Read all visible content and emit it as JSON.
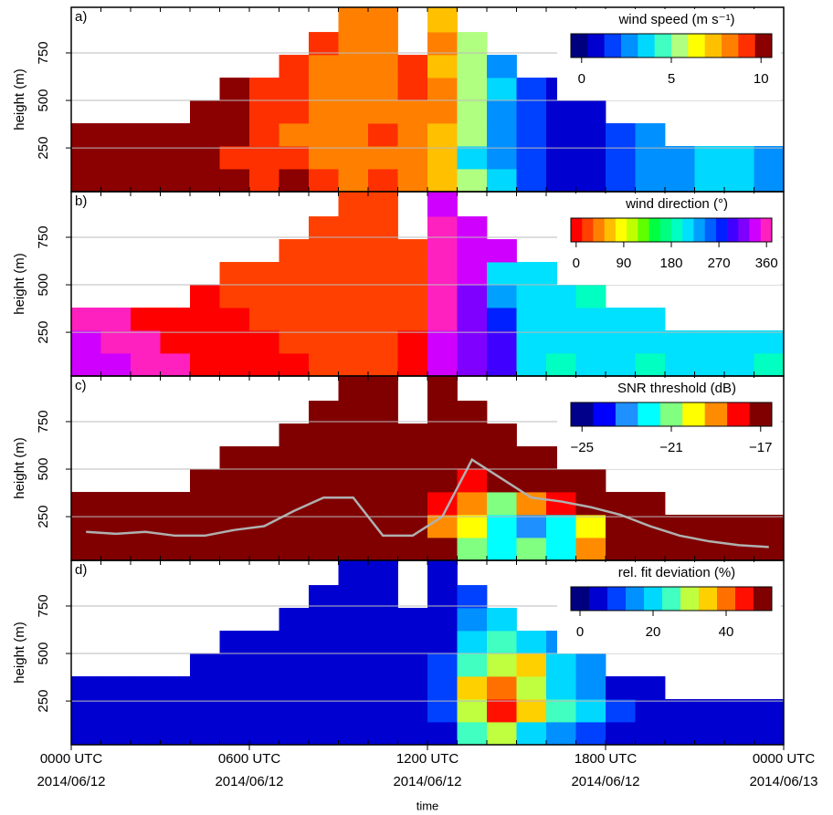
{
  "chart_data": [
    {
      "type": "heatmap",
      "panel_label": "a)",
      "ylabel": "height (m)",
      "colorbar_title": "wind speed (m s⁻¹)",
      "xlim": [
        0,
        24
      ],
      "ylim": [
        20,
        990
      ],
      "yticks": [
        250,
        500,
        750
      ],
      "grid": true,
      "legend": "top-right",
      "xbins": [
        0,
        1,
        2,
        3,
        4,
        5,
        6,
        7,
        8,
        9,
        10,
        11,
        12,
        13,
        14,
        15,
        16,
        17,
        18,
        19,
        20,
        21,
        22,
        23,
        24
      ],
      "ybins": [
        20,
        140,
        260,
        380,
        500,
        620,
        740,
        860,
        990
      ],
      "zlim": [
        -0.6,
        10.6
      ],
      "zticks": [
        0,
        5,
        10
      ],
      "colors": [
        "#00007f",
        "#0000d0",
        "#0040ff",
        "#0090ff",
        "#00d8ff",
        "#40ffc0",
        "#b0ff80",
        "#ffff00",
        "#ffc000",
        "#ff8000",
        "#ff3000",
        "#8b0000"
      ],
      "z": [
        [
          10,
          11,
          10,
          11,
          10,
          10,
          9,
          10,
          9,
          8,
          9,
          8,
          7,
          5,
          4,
          2,
          1,
          1,
          2,
          3,
          3,
          4,
          4,
          3
        ],
        [
          10,
          10,
          11,
          10,
          10,
          9,
          9,
          9,
          8,
          8,
          8,
          8,
          7,
          4,
          3,
          2,
          1,
          1,
          2,
          3,
          3,
          4,
          4,
          3
        ],
        [
          10,
          10,
          10,
          11,
          10,
          10,
          9,
          8,
          8,
          8,
          9,
          8,
          7,
          5,
          3,
          2,
          1,
          1,
          2,
          3,
          null,
          null,
          null,
          null
        ],
        [
          null,
          null,
          null,
          null,
          10,
          10,
          9,
          9,
          8,
          8,
          8,
          8,
          8,
          5,
          3,
          2,
          1,
          1,
          null,
          null,
          null,
          null,
          null,
          null
        ],
        [
          null,
          null,
          null,
          null,
          null,
          10,
          9,
          9,
          8,
          8,
          8,
          9,
          8,
          5,
          4,
          2,
          1,
          null,
          null,
          null,
          null,
          null,
          null,
          null
        ],
        [
          null,
          null,
          null,
          null,
          null,
          null,
          null,
          9,
          8,
          8,
          8,
          9,
          7,
          5,
          3,
          null,
          null,
          null,
          null,
          null,
          null,
          null,
          null,
          null
        ],
        [
          null,
          null,
          null,
          null,
          null,
          null,
          null,
          null,
          9,
          8,
          8,
          null,
          8,
          5,
          null,
          null,
          null,
          null,
          null,
          null,
          null,
          null,
          null,
          null
        ],
        [
          null,
          null,
          null,
          null,
          null,
          null,
          null,
          null,
          null,
          8,
          8,
          null,
          7,
          null,
          null,
          null,
          null,
          null,
          null,
          null,
          null,
          null,
          null,
          null
        ]
      ]
    },
    {
      "type": "heatmap",
      "panel_label": "b)",
      "ylabel": "height (m)",
      "colorbar_title": "wind direction (°)",
      "xlim": [
        0,
        24
      ],
      "ylim": [
        20,
        990
      ],
      "yticks": [
        250,
        500,
        750
      ],
      "grid": true,
      "legend": "top-right",
      "xbins": [
        0,
        1,
        2,
        3,
        4,
        5,
        6,
        7,
        8,
        9,
        10,
        11,
        12,
        13,
        14,
        15,
        16,
        17,
        18,
        19,
        20,
        21,
        22,
        23,
        24
      ],
      "ybins": [
        20,
        140,
        260,
        380,
        500,
        620,
        740,
        860,
        990
      ],
      "zlim": [
        -10,
        370
      ],
      "zticks": [
        0,
        90,
        180,
        270,
        360
      ],
      "colors": [
        "#ff0000",
        "#ff4000",
        "#ff8000",
        "#ffbf00",
        "#ffff00",
        "#bfff00",
        "#60ff00",
        "#00ff40",
        "#00ff80",
        "#00ffc0",
        "#00e0ff",
        "#00a0ff",
        "#0060ff",
        "#0020ff",
        "#4000ff",
        "#8000ff",
        "#d000ff",
        "#ff20c0"
      ],
      "z": [
        [
          340,
          345,
          350,
          355,
          5,
          5,
          10,
          10,
          15,
          20,
          15,
          10,
          340,
          320,
          300,
          210,
          200,
          205,
          205,
          200,
          205,
          210,
          205,
          200
        ],
        [
          345,
          350,
          355,
          5,
          5,
          10,
          10,
          15,
          20,
          25,
          20,
          10,
          345,
          320,
          290,
          210,
          205,
          205,
          205,
          205,
          205,
          210,
          205,
          205
        ],
        [
          350,
          355,
          5,
          5,
          10,
          10,
          15,
          15,
          20,
          25,
          25,
          15,
          350,
          325,
          280,
          215,
          205,
          205,
          205,
          205,
          null,
          null,
          null,
          null
        ],
        [
          null,
          null,
          null,
          null,
          10,
          15,
          15,
          20,
          25,
          25,
          25,
          20,
          355,
          325,
          230,
          210,
          205,
          200,
          null,
          null,
          null,
          null,
          null,
          null
        ],
        [
          null,
          null,
          null,
          null,
          null,
          15,
          20,
          25,
          25,
          25,
          25,
          20,
          355,
          330,
          220,
          210,
          205,
          null,
          null,
          null,
          null,
          null,
          null,
          null
        ],
        [
          null,
          null,
          null,
          null,
          null,
          null,
          null,
          25,
          25,
          25,
          25,
          15,
          350,
          330,
          330,
          null,
          null,
          null,
          null,
          null,
          null,
          null,
          null,
          null
        ],
        [
          null,
          null,
          null,
          null,
          null,
          null,
          null,
          null,
          25,
          25,
          25,
          null,
          350,
          340,
          null,
          null,
          null,
          null,
          null,
          null,
          null,
          null,
          null,
          null
        ],
        [
          null,
          null,
          null,
          null,
          null,
          null,
          null,
          null,
          null,
          25,
          25,
          null,
          340,
          null,
          null,
          null,
          null,
          null,
          null,
          null,
          null,
          null,
          null,
          null
        ]
      ]
    },
    {
      "type": "heatmap",
      "panel_label": "c)",
      "ylabel": "height (m)",
      "colorbar_title": "SNR threshold (dB)",
      "xlim": [
        0,
        24
      ],
      "ylim": [
        20,
        990
      ],
      "yticks": [
        250,
        500,
        750
      ],
      "grid": true,
      "legend": "top-right",
      "xbins": [
        0,
        1,
        2,
        3,
        4,
        5,
        6,
        7,
        8,
        9,
        10,
        11,
        12,
        13,
        14,
        15,
        16,
        17,
        18,
        19,
        20,
        21,
        22,
        23,
        24
      ],
      "ybins": [
        20,
        140,
        260,
        380,
        500,
        620,
        740,
        860,
        990
      ],
      "zlim": [
        -25.5,
        -16.5
      ],
      "zticks": [
        {
          "value": -25,
          "label": "−25"
        },
        {
          "value": -21,
          "label": "−21"
        },
        {
          "value": -17,
          "label": "−17"
        }
      ],
      "colors": [
        "#00008b",
        "#0000ff",
        "#1e90ff",
        "#00ffff",
        "#80ff80",
        "#ffff00",
        "#ff8c00",
        "#ff0000",
        "#800000"
      ],
      "z": [
        [
          -17,
          -17,
          -17,
          -17,
          -17,
          -17,
          -17,
          -17,
          -17,
          -17,
          -17,
          -17,
          -17,
          -21,
          -22,
          -21,
          -22,
          -19,
          -17,
          -17,
          -17,
          -17,
          -17,
          -17
        ],
        [
          -17,
          -17,
          -17,
          -17,
          -17,
          -17,
          -17,
          -17,
          -17,
          -17,
          -17,
          -17,
          -19,
          -20,
          -22,
          -23,
          -22,
          -20,
          -17,
          -17,
          -17,
          -17,
          -17,
          -17
        ],
        [
          -17,
          -17,
          -17,
          -17,
          -17,
          -17,
          -17,
          -17,
          -17,
          -17,
          -17,
          -17,
          -18,
          -19,
          -21,
          -19,
          -18,
          -17,
          -17,
          -17,
          null,
          null,
          null,
          null
        ],
        [
          null,
          null,
          null,
          null,
          -17,
          -17,
          -17,
          -17,
          -17,
          -17,
          -17,
          -17,
          -17,
          -18,
          -17,
          -17,
          -17,
          -17,
          null,
          null,
          null,
          null,
          null,
          null
        ],
        [
          null,
          null,
          null,
          null,
          null,
          -17,
          -17,
          -17,
          -17,
          -17,
          -17,
          -17,
          -17,
          -17,
          -17,
          -17,
          -17,
          null,
          null,
          null,
          null,
          null,
          null,
          null
        ],
        [
          null,
          null,
          null,
          null,
          null,
          null,
          null,
          -17,
          -17,
          -17,
          -17,
          -17,
          -17,
          -17,
          -17,
          null,
          null,
          null,
          null,
          null,
          null,
          null,
          null,
          null
        ],
        [
          null,
          null,
          null,
          null,
          null,
          null,
          null,
          null,
          -17,
          -17,
          -17,
          null,
          -17,
          -17,
          null,
          null,
          null,
          null,
          null,
          null,
          null,
          null,
          null,
          null
        ],
        [
          null,
          null,
          null,
          null,
          null,
          null,
          null,
          null,
          null,
          -17,
          -17,
          null,
          -17,
          null,
          null,
          null,
          null,
          null,
          null,
          null,
          null,
          null,
          null,
          null
        ]
      ],
      "line": {
        "color": "#b0b0b0",
        "values": [
          170,
          160,
          170,
          150,
          150,
          180,
          200,
          280,
          350,
          350,
          150,
          150,
          250,
          550,
          450,
          350,
          330,
          300,
          260,
          200,
          150,
          120,
          100,
          90
        ]
      }
    },
    {
      "type": "heatmap",
      "panel_label": "d)",
      "ylabel": "height (m)",
      "colorbar_title": "rel. fit deviation (%)",
      "xlim": [
        0,
        24
      ],
      "ylim": [
        20,
        990
      ],
      "yticks": [
        250,
        500,
        750
      ],
      "grid": true,
      "legend": "top-right",
      "xbins": [
        0,
        1,
        2,
        3,
        4,
        5,
        6,
        7,
        8,
        9,
        10,
        11,
        12,
        13,
        14,
        15,
        16,
        17,
        18,
        19,
        20,
        21,
        22,
        23,
        24
      ],
      "ybins": [
        20,
        140,
        260,
        380,
        500,
        620,
        740,
        860,
        990
      ],
      "zlim": [
        -2.5,
        52.5
      ],
      "zticks": [
        0,
        20,
        40
      ],
      "colors": [
        "#00007f",
        "#0000d0",
        "#0040ff",
        "#0090ff",
        "#00d8ff",
        "#40ffc0",
        "#c0ff40",
        "#ffd000",
        "#ff7000",
        "#ff1000",
        "#800000"
      ],
      "z": [
        [
          4,
          4,
          5,
          4,
          3,
          4,
          3,
          3,
          4,
          3,
          4,
          4,
          6,
          25,
          30,
          20,
          15,
          12,
          6,
          4,
          4,
          3,
          4,
          4
        ],
        [
          4,
          5,
          4,
          4,
          3,
          3,
          3,
          3,
          4,
          3,
          3,
          4,
          8,
          30,
          45,
          35,
          25,
          20,
          8,
          4,
          4,
          4,
          4,
          3
        ],
        [
          5,
          5,
          4,
          4,
          4,
          3,
          3,
          3,
          3,
          3,
          4,
          4,
          10,
          35,
          40,
          30,
          20,
          15,
          6,
          5,
          null,
          null,
          null,
          null
        ],
        [
          null,
          null,
          null,
          null,
          5,
          4,
          3,
          3,
          3,
          3,
          3,
          4,
          8,
          25,
          30,
          35,
          20,
          15,
          null,
          null,
          null,
          null,
          null,
          null
        ],
        [
          null,
          null,
          null,
          null,
          null,
          6,
          4,
          3,
          3,
          3,
          3,
          4,
          6,
          20,
          25,
          18,
          15,
          null,
          null,
          null,
          null,
          null,
          null,
          null
        ],
        [
          null,
          null,
          null,
          null,
          null,
          null,
          null,
          4,
          3,
          3,
          3,
          4,
          5,
          15,
          20,
          null,
          null,
          null,
          null,
          null,
          null,
          null,
          null,
          null
        ],
        [
          null,
          null,
          null,
          null,
          null,
          null,
          null,
          null,
          4,
          3,
          3,
          null,
          5,
          12,
          null,
          null,
          null,
          null,
          null,
          null,
          null,
          null,
          null,
          null
        ],
        [
          null,
          null,
          null,
          null,
          null,
          null,
          null,
          null,
          null,
          4,
          3,
          null,
          6,
          null,
          null,
          null,
          null,
          null,
          null,
          null,
          null,
          null,
          null,
          null
        ]
      ],
      "xlabel": "time",
      "xticks": [
        {
          "value": 0,
          "label": [
            "0000 UTC",
            "2014/06/12"
          ]
        },
        {
          "value": 6,
          "label": [
            "0600 UTC",
            "2014/06/12"
          ]
        },
        {
          "value": 12,
          "label": [
            "1200 UTC",
            "2014/06/12"
          ]
        },
        {
          "value": 18,
          "label": [
            "1800 UTC",
            "2014/06/12"
          ]
        },
        {
          "value": 24,
          "label": [
            "0000 UTC",
            "2014/06/13"
          ]
        }
      ]
    }
  ]
}
